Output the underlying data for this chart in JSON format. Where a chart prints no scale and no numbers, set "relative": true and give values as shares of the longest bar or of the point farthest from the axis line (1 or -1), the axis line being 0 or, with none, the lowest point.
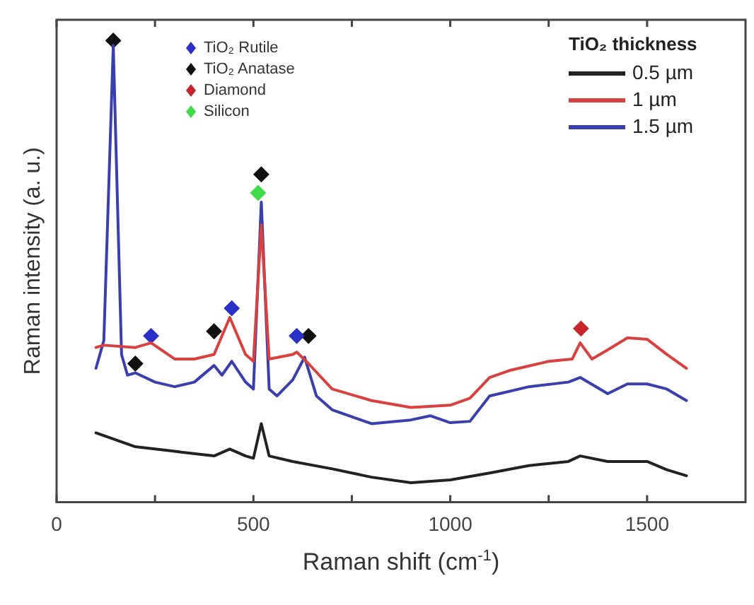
{
  "chart_data": {
    "type": "line",
    "xlabel": "Raman shift (cm$^{-1}$)",
    "ylabel": "Raman intensity (a. u.)",
    "relative": true,
    "xlim": [
      0,
      1750
    ],
    "xticks": [
      0,
      {
        "value": 250,
        "label": null
      },
      500,
      {
        "value": 750,
        "label": null
      },
      1000,
      {
        "value": 1250,
        "label": null
      },
      1500
    ],
    "tick_labels": "x",
    "grid": false,
    "legend": "top right",
    "legend_title": "TiO₂ thickness",
    "line_style": "solid",
    "series": [
      {
        "name": "0.5 µm",
        "color": "#222222",
        "marker": "none",
        "x": [
          100,
          200,
          300,
          400,
          440,
          480,
          500,
          520,
          540,
          600,
          700,
          800,
          900,
          1000,
          1100,
          1200,
          1300,
          1330,
          1400,
          1500,
          1550,
          1600
        ],
        "values": [
          0.15,
          0.12,
          0.11,
          0.1,
          0.115,
          0.1,
          0.095,
          0.17,
          0.1,
          0.088,
          0.072,
          0.054,
          0.042,
          0.048,
          0.063,
          0.079,
          0.088,
          0.1,
          0.088,
          0.088,
          0.07,
          0.057
        ]
      },
      {
        "name": "1 µm",
        "color": "#d9413f",
        "marker": "none",
        "x": [
          100,
          120,
          200,
          240,
          300,
          350,
          400,
          440,
          480,
          500,
          520,
          540,
          600,
          610,
          640,
          700,
          800,
          900,
          1000,
          1050,
          1100,
          1150,
          1200,
          1250,
          1310,
          1330,
          1360,
          1400,
          1450,
          1500,
          1550,
          1600
        ],
        "values": [
          0.335,
          0.34,
          0.335,
          0.345,
          0.31,
          0.31,
          0.32,
          0.4,
          0.32,
          0.305,
          0.6,
          0.31,
          0.32,
          0.325,
          0.3,
          0.245,
          0.22,
          0.205,
          0.21,
          0.225,
          0.27,
          0.285,
          0.295,
          0.305,
          0.31,
          0.345,
          0.31,
          0.33,
          0.356,
          0.353,
          0.32,
          0.29
        ]
      },
      {
        "name": "1.5 µm",
        "color": "#3a3fae",
        "marker": "none",
        "x": [
          100,
          120,
          144,
          165,
          180,
          200,
          250,
          300,
          350,
          400,
          420,
          445,
          480,
          500,
          520,
          540,
          560,
          600,
          630,
          660,
          700,
          800,
          900,
          950,
          1000,
          1050,
          1100,
          1200,
          1300,
          1330,
          1400,
          1450,
          1500,
          1550,
          1600
        ],
        "values": [
          0.29,
          0.35,
          0.99,
          0.32,
          0.275,
          0.28,
          0.26,
          0.25,
          0.26,
          0.296,
          0.275,
          0.305,
          0.26,
          0.245,
          0.65,
          0.245,
          0.23,
          0.265,
          0.314,
          0.23,
          0.2,
          0.17,
          0.178,
          0.187,
          0.172,
          0.175,
          0.23,
          0.25,
          0.26,
          0.27,
          0.235,
          0.256,
          0.256,
          0.245,
          0.22
        ]
      },
      {
        "name": "TiO₂ Rutile",
        "type": "scatter",
        "marker": "diamond",
        "color": "#2a2fc8",
        "x": [
          240,
          445,
          610
        ],
        "values": [
          0.36,
          0.42,
          0.36
        ]
      },
      {
        "name": "TiO₂ Anatase",
        "type": "scatter",
        "marker": "diamond",
        "color": "#111111",
        "x": [
          144,
          200,
          400,
          520,
          640
        ],
        "values": [
          1.0,
          0.3,
          0.37,
          0.71,
          0.36
        ]
      },
      {
        "name": "Diamond",
        "type": "scatter",
        "marker": "diamond",
        "color": "#c8262a",
        "x": [
          1332
        ],
        "values": [
          0.376
        ]
      },
      {
        "name": "Silicon",
        "type": "scatter",
        "marker": "diamond",
        "color": "#3ddc4a",
        "x": [
          512
        ],
        "values": [
          0.67
        ]
      }
    ]
  }
}
